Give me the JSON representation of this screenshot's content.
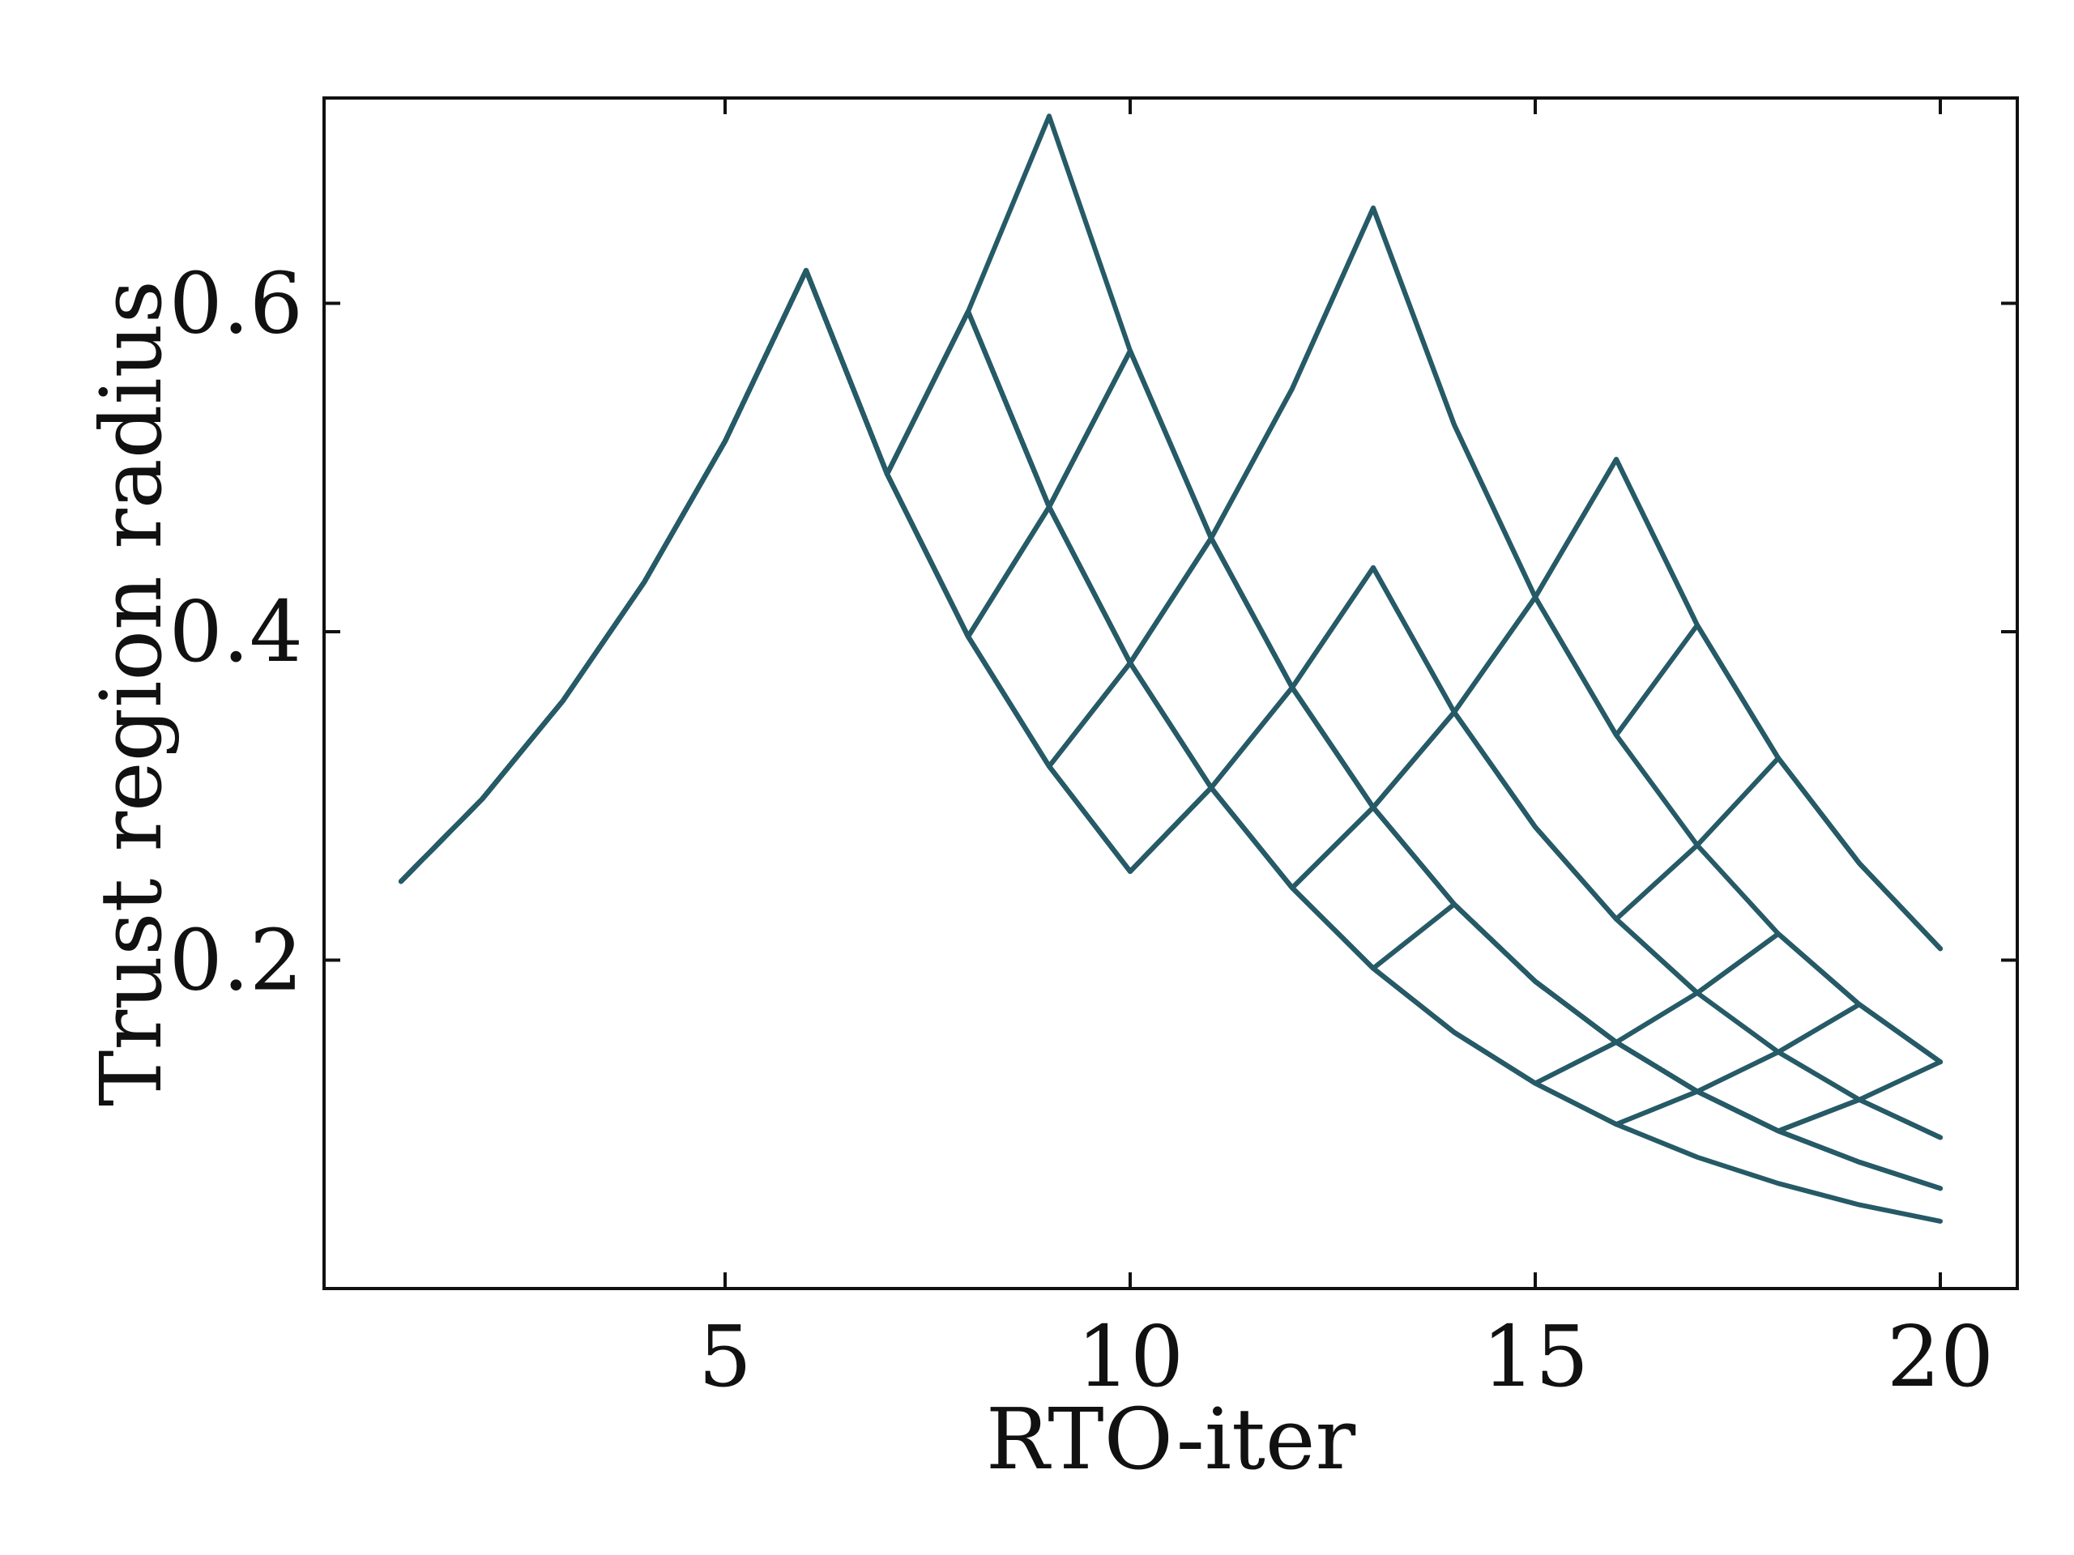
{
  "chart_data": {
    "type": "line",
    "xlabel": "RTO-iter",
    "ylabel": "Trust region radius",
    "xlim": [
      0.05,
      20.95
    ],
    "ylim": [
      0.0,
      0.725
    ],
    "xticks": [
      5,
      10,
      15,
      20
    ],
    "xtick_labels": [
      "5",
      "10",
      "15",
      "20"
    ],
    "yticks": [
      0.2,
      0.4,
      0.6
    ],
    "ytick_labels": [
      "0.2",
      "0.4",
      "0.6"
    ],
    "tick_direction": "in",
    "ticks_on_all_sides": true,
    "grid": false,
    "legend": "none",
    "line_color": "#255a66",
    "series": [
      {
        "x": [
          1,
          2,
          3,
          4,
          5,
          6,
          7,
          8,
          9,
          10,
          11,
          12,
          13,
          14,
          15,
          16,
          17,
          18,
          19,
          20
        ],
        "values": [
          0.248,
          0.298,
          0.358,
          0.43,
          0.516,
          0.62,
          0.496,
          0.397,
          0.318,
          0.254,
          0.305,
          0.244,
          0.195,
          0.156,
          0.125,
          0.1,
          0.08,
          0.064,
          0.051,
          0.041
        ]
      },
      {
        "x": [
          1,
          2,
          3,
          4,
          5,
          6,
          7,
          8,
          9,
          10,
          11,
          12,
          13,
          14,
          15,
          16,
          17,
          18,
          19,
          20
        ],
        "values": [
          0.248,
          0.298,
          0.358,
          0.43,
          0.516,
          0.62,
          0.496,
          0.397,
          0.476,
          0.381,
          0.457,
          0.366,
          0.293,
          0.234,
          0.187,
          0.15,
          0.12,
          0.096,
          0.077,
          0.061
        ]
      },
      {
        "x": [
          1,
          2,
          3,
          4,
          5,
          6,
          7,
          8,
          9,
          10,
          11,
          12,
          13,
          14,
          15,
          16,
          17,
          18,
          19,
          20
        ],
        "values": [
          0.248,
          0.298,
          0.358,
          0.43,
          0.516,
          0.62,
          0.496,
          0.397,
          0.318,
          0.381,
          0.305,
          0.366,
          0.439,
          0.351,
          0.281,
          0.225,
          0.18,
          0.144,
          0.115,
          0.092
        ]
      },
      {
        "x": [
          1,
          2,
          3,
          4,
          5,
          6,
          7,
          8,
          9,
          10,
          11,
          12,
          13,
          14,
          15,
          16,
          17,
          18,
          19,
          20
        ],
        "values": [
          0.248,
          0.298,
          0.358,
          0.43,
          0.516,
          0.62,
          0.496,
          0.595,
          0.476,
          0.571,
          0.457,
          0.366,
          0.293,
          0.234,
          0.187,
          0.15,
          0.12,
          0.144,
          0.173,
          0.138
        ]
      },
      {
        "x": [
          1,
          2,
          3,
          4,
          5,
          6,
          7,
          8,
          9,
          10,
          11,
          12,
          13,
          14,
          15,
          16,
          17,
          18,
          19,
          20
        ],
        "values": [
          0.248,
          0.298,
          0.358,
          0.43,
          0.516,
          0.62,
          0.496,
          0.595,
          0.476,
          0.381,
          0.305,
          0.244,
          0.293,
          0.351,
          0.421,
          0.337,
          0.404,
          0.323,
          0.259,
          0.207
        ]
      },
      {
        "x": [
          1,
          2,
          3,
          4,
          5,
          6,
          7,
          8,
          9,
          10,
          11,
          12,
          13,
          14,
          15,
          16,
          17,
          18,
          19,
          20
        ],
        "values": [
          0.248,
          0.298,
          0.358,
          0.43,
          0.516,
          0.62,
          0.496,
          0.595,
          0.714,
          0.571,
          0.457,
          0.548,
          0.658,
          0.526,
          0.421,
          0.505,
          0.404,
          0.323,
          0.259,
          0.207
        ]
      },
      {
        "x": [
          1,
          2,
          3,
          4,
          5,
          6,
          7,
          8,
          9,
          10,
          11,
          12,
          13,
          14,
          15,
          16,
          17,
          18,
          19,
          20
        ],
        "values": [
          0.248,
          0.298,
          0.358,
          0.43,
          0.516,
          0.62,
          0.496,
          0.397,
          0.476,
          0.571,
          0.457,
          0.366,
          0.293,
          0.234,
          0.187,
          0.15,
          0.18,
          0.216,
          0.173,
          0.138
        ]
      },
      {
        "x": [
          1,
          2,
          3,
          4,
          5,
          6,
          7,
          8,
          9,
          10,
          11,
          12,
          13,
          14,
          15,
          16,
          17,
          18,
          19,
          20
        ],
        "values": [
          0.248,
          0.298,
          0.358,
          0.43,
          0.516,
          0.62,
          0.496,
          0.397,
          0.318,
          0.254,
          0.305,
          0.244,
          0.195,
          0.234,
          0.187,
          0.15,
          0.12,
          0.096,
          0.115,
          0.092
        ]
      },
      {
        "x": [
          1,
          2,
          3,
          4,
          5,
          6,
          7,
          8,
          9,
          10,
          11,
          12,
          13,
          14,
          15,
          16,
          17,
          18,
          19,
          20
        ],
        "values": [
          0.248,
          0.298,
          0.358,
          0.43,
          0.516,
          0.62,
          0.496,
          0.595,
          0.476,
          0.381,
          0.305,
          0.244,
          0.195,
          0.156,
          0.125,
          0.15,
          0.12,
          0.096,
          0.077,
          0.061
        ]
      },
      {
        "x": [
          1,
          2,
          3,
          4,
          5,
          6,
          7,
          8,
          9,
          10,
          11,
          12,
          13,
          14,
          15,
          16,
          17,
          18,
          19,
          20
        ],
        "values": [
          0.248,
          0.298,
          0.358,
          0.43,
          0.516,
          0.62,
          0.496,
          0.397,
          0.318,
          0.254,
          0.305,
          0.366,
          0.439,
          0.351,
          0.281,
          0.225,
          0.27,
          0.216,
          0.173,
          0.138
        ]
      },
      {
        "x": [
          1,
          2,
          3,
          4,
          5,
          6,
          7,
          8,
          9,
          10,
          11,
          12,
          13,
          14,
          15,
          16,
          17,
          18,
          19,
          20
        ],
        "values": [
          0.248,
          0.298,
          0.358,
          0.43,
          0.516,
          0.62,
          0.496,
          0.595,
          0.476,
          0.381,
          0.457,
          0.548,
          0.658,
          0.526,
          0.421,
          0.337,
          0.27,
          0.323,
          0.259,
          0.207
        ]
      },
      {
        "x": [
          1,
          2,
          3,
          4,
          5,
          6,
          7,
          8,
          9,
          10,
          11,
          12,
          13,
          14,
          15,
          16,
          17,
          18,
          19,
          20
        ],
        "values": [
          0.248,
          0.298,
          0.358,
          0.43,
          0.516,
          0.62,
          0.496,
          0.397,
          0.318,
          0.381,
          0.457,
          0.366,
          0.293,
          0.351,
          0.421,
          0.505,
          0.404,
          0.323,
          0.259,
          0.207
        ]
      },
      {
        "x": [
          1,
          2,
          3,
          4,
          5,
          6,
          7,
          8,
          9,
          10,
          11,
          12,
          13,
          14,
          15,
          16,
          17,
          18,
          19,
          20
        ],
        "values": [
          0.248,
          0.298,
          0.358,
          0.43,
          0.516,
          0.62,
          0.496,
          0.397,
          0.476,
          0.381,
          0.305,
          0.244,
          0.195,
          0.156,
          0.125,
          0.1,
          0.12,
          0.096,
          0.077,
          0.061
        ]
      },
      {
        "x": [
          1,
          2,
          3,
          4,
          5,
          6,
          7,
          8,
          9,
          10,
          11,
          12,
          13,
          14,
          15,
          16,
          17,
          18,
          19,
          20
        ],
        "values": [
          0.248,
          0.298,
          0.358,
          0.43,
          0.516,
          0.62,
          0.496,
          0.595,
          0.476,
          0.571,
          0.457,
          0.366,
          0.293,
          0.234,
          0.187,
          0.15,
          0.12,
          0.096,
          0.115,
          0.138
        ]
      },
      {
        "x": [
          1,
          2,
          3,
          4,
          5,
          6,
          7,
          8,
          9,
          10,
          11,
          12,
          13,
          14,
          15,
          16,
          17,
          18,
          19,
          20
        ],
        "values": [
          0.248,
          0.298,
          0.358,
          0.43,
          0.516,
          0.62,
          0.496,
          0.397,
          0.318,
          0.254,
          0.305,
          0.244,
          0.293,
          0.351,
          0.281,
          0.225,
          0.18,
          0.216,
          0.173,
          0.138
        ]
      }
    ]
  }
}
